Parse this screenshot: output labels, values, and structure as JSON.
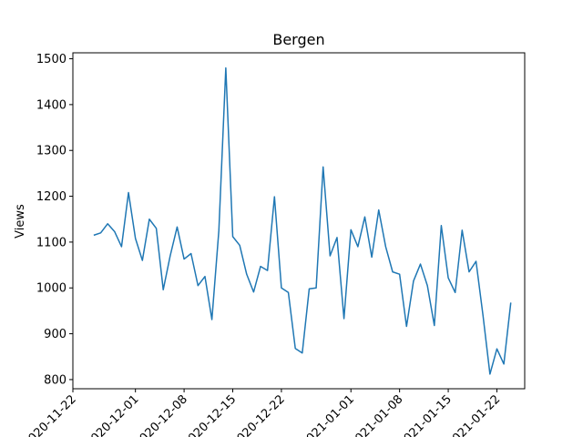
{
  "chart_data": {
    "type": "line",
    "title": "Bergen",
    "xlabel": "",
    "ylabel": "Views",
    "x_ticks": [
      "2020-11-22",
      "2020-12-01",
      "2020-12-08",
      "2020-12-15",
      "2020-12-22",
      "2021-01-01",
      "2021-01-08",
      "2021-01-15",
      "2021-01-22"
    ],
    "y_ticks": [
      800,
      900,
      1000,
      1100,
      1200,
      1300,
      1400,
      1500
    ],
    "xlim": [
      "2020-11-22",
      "2021-01-26"
    ],
    "ylim": [
      780,
      1513
    ],
    "grid": false,
    "line_color": "#1f77b4",
    "series": [
      {
        "x": [
          "2020-11-25",
          "2020-11-26",
          "2020-11-27",
          "2020-11-28",
          "2020-11-29",
          "2020-11-30",
          "2020-12-01",
          "2020-12-02",
          "2020-12-03",
          "2020-12-04",
          "2020-12-05",
          "2020-12-06",
          "2020-12-07",
          "2020-12-08",
          "2020-12-09",
          "2020-12-10",
          "2020-12-11",
          "2020-12-12",
          "2020-12-13",
          "2020-12-14",
          "2020-12-15",
          "2020-12-16",
          "2020-12-17",
          "2020-12-18",
          "2020-12-19",
          "2020-12-20",
          "2020-12-21",
          "2020-12-22",
          "2020-12-23",
          "2020-12-24",
          "2020-12-25",
          "2020-12-26",
          "2020-12-27",
          "2020-12-28",
          "2020-12-29",
          "2020-12-30",
          "2020-12-31",
          "2021-01-01",
          "2021-01-02",
          "2021-01-03",
          "2021-01-04",
          "2021-01-05",
          "2021-01-06",
          "2021-01-07",
          "2021-01-08",
          "2021-01-09",
          "2021-01-10",
          "2021-01-11",
          "2021-01-12",
          "2021-01-13",
          "2021-01-14",
          "2021-01-15",
          "2021-01-16",
          "2021-01-17",
          "2021-01-18",
          "2021-01-19",
          "2021-01-20",
          "2021-01-21",
          "2021-01-22",
          "2021-01-23",
          "2021-01-24"
        ],
        "values": [
          1115,
          1120,
          1140,
          1123,
          1090,
          1208,
          1108,
          1060,
          1150,
          1130,
          996,
          1070,
          1133,
          1063,
          1075,
          1005,
          1025,
          931,
          1125,
          1480,
          1112,
          1093,
          1030,
          991,
          1047,
          1038,
          1199,
          1000,
          990,
          868,
          858,
          998,
          1000,
          1264,
          1070,
          1110,
          933,
          1127,
          1090,
          1155,
          1067,
          1170,
          1090,
          1035,
          1030,
          916,
          1015,
          1052,
          1005,
          918,
          1136,
          1022,
          990,
          1126,
          1035,
          1058,
          940,
          812,
          867,
          834,
          968
        ]
      }
    ]
  }
}
